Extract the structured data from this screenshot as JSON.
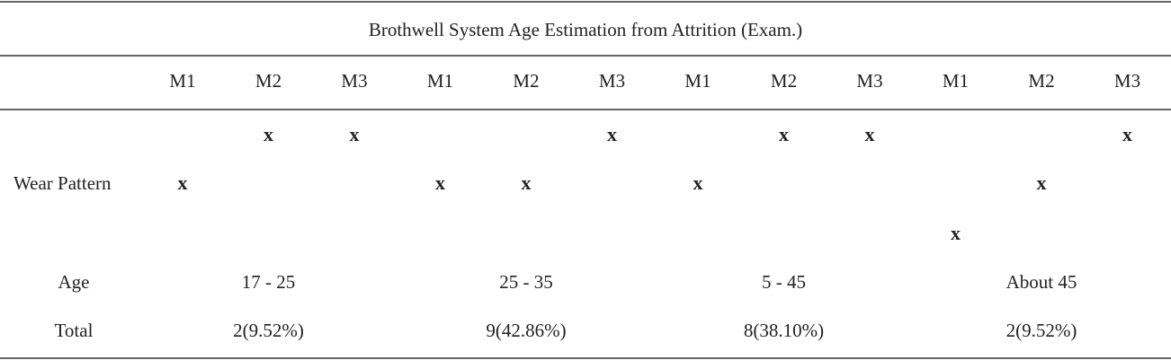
{
  "table": {
    "title": "Brothwell System Age Estimation from Attrition (Exam.)",
    "columns": [
      "M1",
      "M2",
      "M3",
      "M1",
      "M2",
      "M3",
      "M1",
      "M2",
      "M3",
      "M1",
      "M2",
      "M3"
    ],
    "wear_label": "Wear Pattern",
    "wear_rows": [
      [
        null,
        "x",
        "x",
        null,
        null,
        "x",
        null,
        "x",
        "x",
        null,
        null,
        "x"
      ],
      [
        "x",
        null,
        null,
        "x",
        "x",
        null,
        "x",
        null,
        null,
        null,
        "x",
        null
      ],
      [
        null,
        null,
        null,
        null,
        null,
        null,
        null,
        null,
        null,
        "x",
        null,
        null
      ]
    ],
    "age_label": "Age",
    "ages": [
      "17 - 25",
      "25 - 35",
      "5 - 45",
      "About 45"
    ],
    "total_label": "Total",
    "totals": [
      "2(9.52%)",
      "9(42.86%)",
      "8(38.10%)",
      "2(9.52%)"
    ]
  }
}
